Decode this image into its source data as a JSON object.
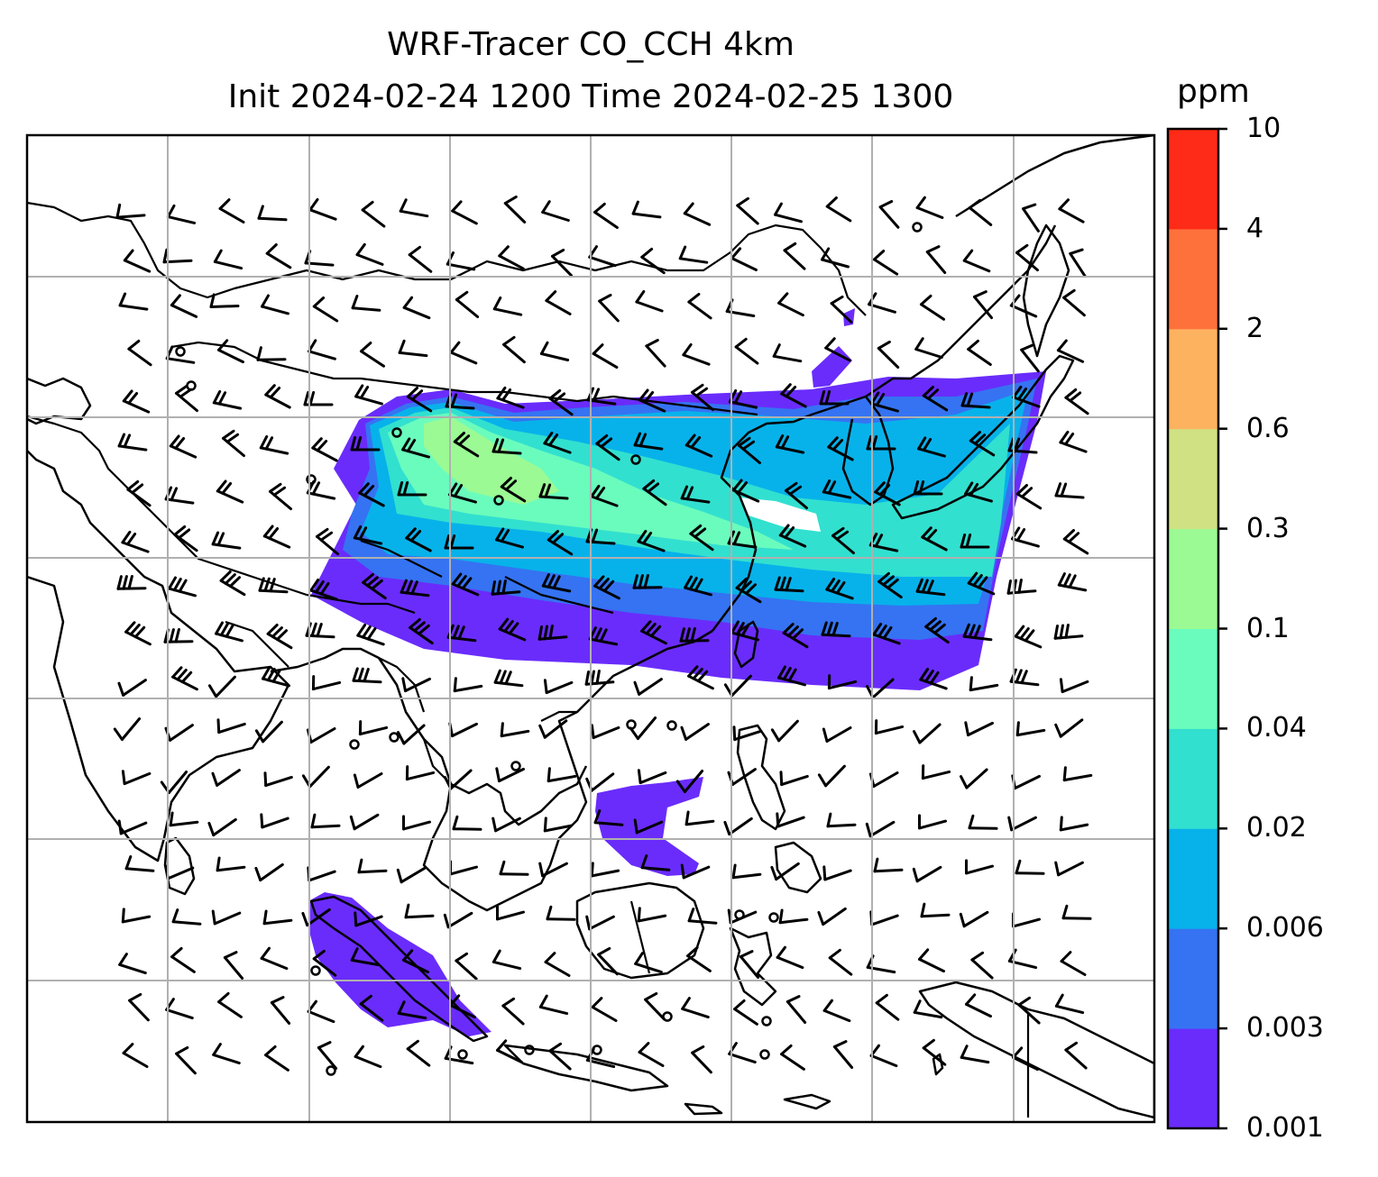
{
  "title": {
    "line1": "WRF-Tracer CO_CCH 4km",
    "line2": "Init 2024-02-24 1200 Time 2024-02-25 1300"
  },
  "map": {
    "variable": "CO_CCH tracer concentration",
    "overlay": "wind barbs",
    "gridlines": true,
    "coastlines": true,
    "borders": true
  },
  "colorbar": {
    "unit": "ppm",
    "levels": [
      "0.001",
      "0.003",
      "0.006",
      "0.02",
      "0.04",
      "0.1",
      "0.3",
      "0.6",
      "2",
      "4",
      "10"
    ],
    "colors": [
      "#6a2cfb",
      "#3573f2",
      "#07b2ea",
      "#32e0cf",
      "#6afcbd",
      "#9bfa94",
      "#d0e183",
      "#fdb260",
      "#fe713b",
      "#fd2b17"
    ]
  }
}
